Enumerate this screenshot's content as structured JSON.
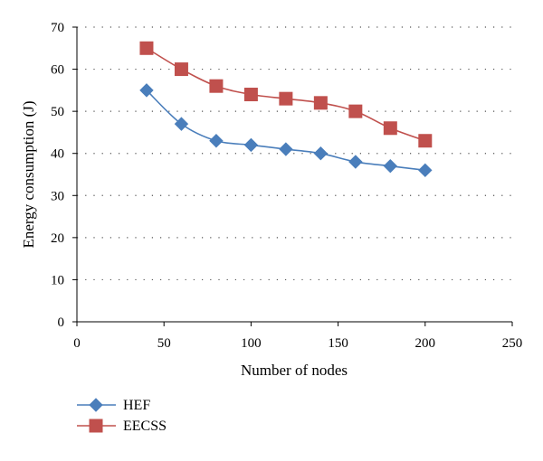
{
  "chart_data": {
    "type": "line",
    "title": "",
    "xlabel": "Number of nodes",
    "ylabel": "Energy consumption (J)",
    "xlim": [
      0,
      250
    ],
    "ylim": [
      0,
      70
    ],
    "xticks": [
      0,
      50,
      100,
      150,
      200,
      250
    ],
    "yticks": [
      0,
      10,
      20,
      30,
      40,
      50,
      60,
      70
    ],
    "x_tick_labels": [
      "0",
      "50",
      "100",
      "150",
      "200",
      "250"
    ],
    "y_tick_labels": [
      "0",
      "10",
      "20",
      "30",
      "40",
      "50",
      "60",
      "70"
    ],
    "grid": "horizontal dotted",
    "legend_position": "bottom-left",
    "series": [
      {
        "name": "HEF",
        "marker": "diamond",
        "color": "#4a7ebb",
        "x": [
          40,
          60,
          80,
          100,
          120,
          140,
          160,
          180,
          200
        ],
        "values": [
          55,
          47,
          43,
          42,
          41,
          40,
          38,
          37,
          36
        ]
      },
      {
        "name": "EECSS",
        "marker": "square",
        "color": "#c0504d",
        "x": [
          40,
          60,
          80,
          100,
          120,
          140,
          160,
          180,
          200
        ],
        "values": [
          65,
          60,
          56,
          54,
          53,
          52,
          50,
          46,
          43
        ]
      }
    ]
  }
}
